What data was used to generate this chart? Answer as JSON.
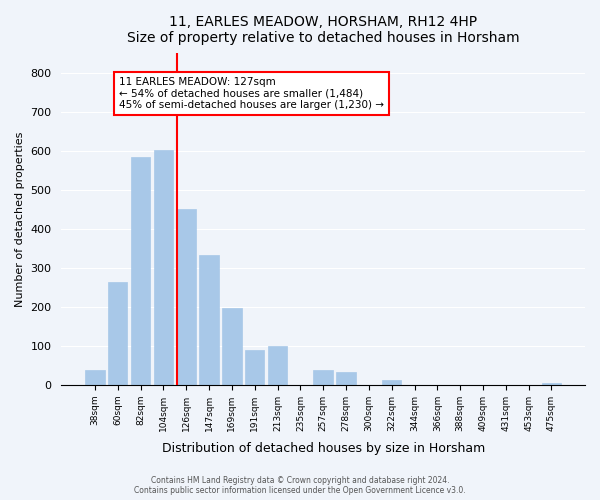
{
  "title": "11, EARLES MEADOW, HORSHAM, RH12 4HP",
  "subtitle": "Size of property relative to detached houses in Horsham",
  "xlabel": "Distribution of detached houses by size in Horsham",
  "ylabel": "Number of detached properties",
  "bar_labels": [
    "38sqm",
    "60sqm",
    "82sqm",
    "104sqm",
    "126sqm",
    "147sqm",
    "169sqm",
    "191sqm",
    "213sqm",
    "235sqm",
    "257sqm",
    "278sqm",
    "300sqm",
    "322sqm",
    "344sqm",
    "366sqm",
    "388sqm",
    "409sqm",
    "431sqm",
    "453sqm",
    "475sqm"
  ],
  "bar_values": [
    38,
    263,
    585,
    603,
    452,
    332,
    196,
    88,
    100,
    0,
    37,
    32,
    0,
    13,
    0,
    0,
    0,
    0,
    0,
    0,
    5
  ],
  "bar_color": "#a8c8e8",
  "bar_edge_color": "#a8c8e8",
  "vline_x_index": 4,
  "vline_color": "red",
  "annotation_line1": "11 EARLES MEADOW: 127sqm",
  "annotation_line2": "← 54% of detached houses are smaller (1,484)",
  "annotation_line3": "45% of semi-detached houses are larger (1,230) →",
  "annotation_box_color": "white",
  "annotation_box_edge": "red",
  "ylim": [
    0,
    850
  ],
  "yticks": [
    0,
    100,
    200,
    300,
    400,
    500,
    600,
    700,
    800
  ],
  "footer_line1": "Contains HM Land Registry data © Crown copyright and database right 2024.",
  "footer_line2": "Contains public sector information licensed under the Open Government Licence v3.0.",
  "bg_color": "#f0f4fa",
  "plot_bg_color": "#f0f4fa"
}
